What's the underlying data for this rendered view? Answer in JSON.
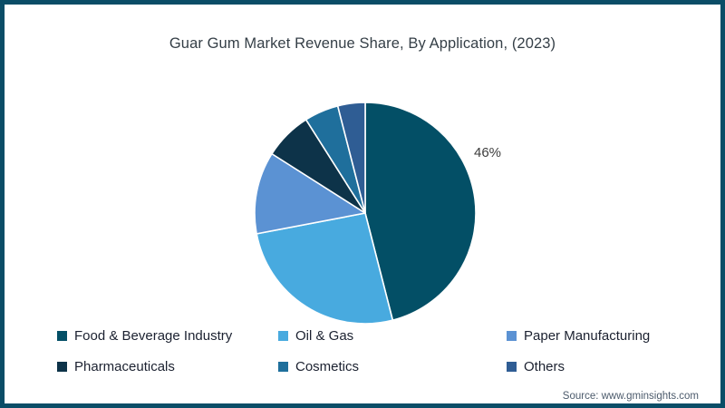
{
  "frame": {
    "border_color": "#0a4d67",
    "background_color": "#ffffff"
  },
  "chart_data": {
    "type": "pie",
    "title": "Guar Gum Market Revenue Share, By Application, (2023)",
    "unit": "percent",
    "start_angle_deg": 0,
    "direction": "clockwise",
    "legend_position": "bottom",
    "slices": [
      {
        "label": "Food & Beverage Industry",
        "value": 46,
        "color": "#034f66"
      },
      {
        "label": "Oil & Gas",
        "value": 26,
        "color": "#48aadf"
      },
      {
        "label": "Paper Manufacturing",
        "value": 12,
        "color": "#5b92d3"
      },
      {
        "label": "Pharmaceuticals",
        "value": 7,
        "color": "#0d3349"
      },
      {
        "label": "Cosmetics",
        "value": 5,
        "color": "#1f6f9c"
      },
      {
        "label": "Others",
        "value": 4,
        "color": "#2f5d94"
      }
    ],
    "annotations": [
      {
        "text": "46%",
        "slice": "Food & Beverage Industry"
      }
    ]
  },
  "source": {
    "text": "Source: www.gminsights.com"
  }
}
